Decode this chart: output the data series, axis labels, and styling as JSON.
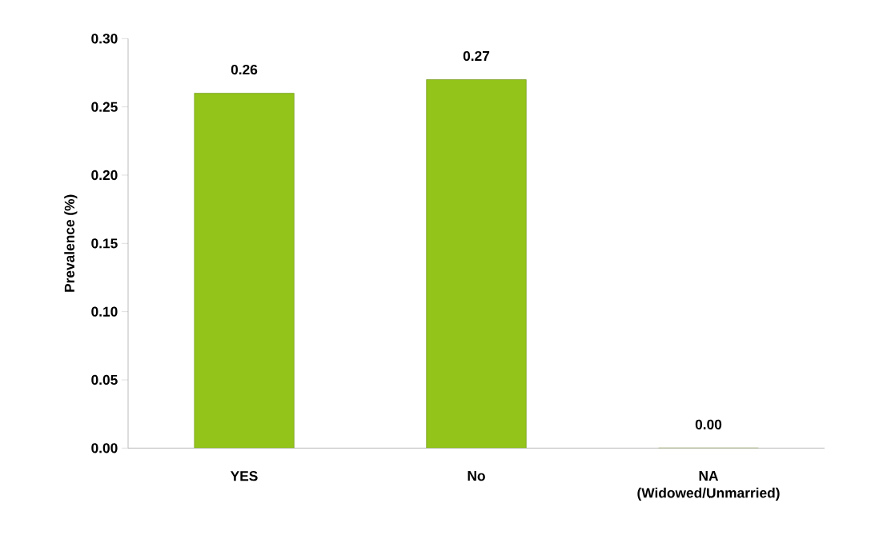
{
  "chart_data": {
    "type": "bar",
    "ylabel": "Prevalence (%)",
    "categories": [
      "YES",
      "No",
      "NA (Widowed/Unmarried)"
    ],
    "values": [
      0.26,
      0.27,
      0.0
    ],
    "value_labels": [
      "0.26",
      "0.27",
      "0.00"
    ],
    "color": "#92c41a",
    "ylim": [
      0,
      0.3
    ],
    "yticks": [
      {
        "value": 0,
        "label": "0.00"
      },
      {
        "value": 0.05,
        "label": "0.05"
      },
      {
        "value": 0.1,
        "label": "0.10"
      },
      {
        "value": 0.15,
        "label": "0.15"
      },
      {
        "value": 0.2,
        "label": "0.20"
      },
      {
        "value": 0.25,
        "label": "0.25"
      },
      {
        "value": 0.3,
        "label": "0.30"
      }
    ],
    "grid": false
  }
}
